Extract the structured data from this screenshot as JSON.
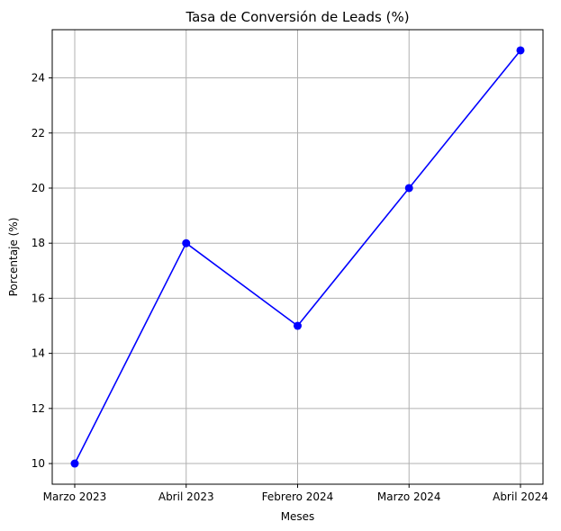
{
  "chart_data": {
    "type": "line",
    "title": "Tasa de Conversión de Leads (%)",
    "xlabel": "Meses",
    "ylabel": "Porcentaje (%)",
    "categories": [
      "Marzo 2023",
      "Abril 2023",
      "Febrero 2024",
      "Marzo 2024",
      "Abril 2024"
    ],
    "series": [
      {
        "values": [
          10,
          18,
          15,
          20,
          25
        ],
        "color": "#0000ff",
        "marker": "circle"
      }
    ],
    "yticks": [
      10,
      12,
      14,
      16,
      18,
      20,
      22,
      24
    ],
    "ylim": [
      9.25,
      25.75
    ],
    "grid": true,
    "legend": "none"
  }
}
